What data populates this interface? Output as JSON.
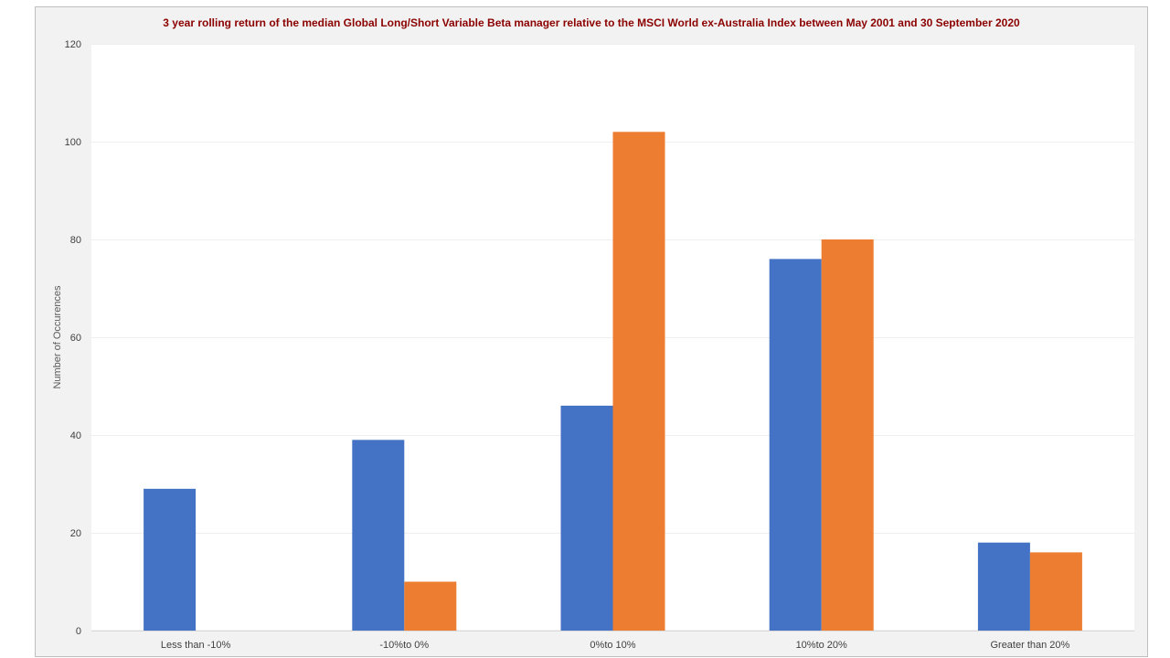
{
  "chart_data": {
    "type": "bar",
    "title": "3 year rolling  return of the median Global  Long/Short Variable Beta manager relative to the MSCI World ex-Australia Index between May 2001 and 30 September 2020",
    "xlabel": "",
    "ylabel": "Number of Occurences",
    "ylim": [
      0,
      120
    ],
    "yticks": [
      0,
      20,
      40,
      60,
      80,
      100,
      120
    ],
    "categories": [
      "Less than -10%",
      "-10%to 0%",
      "0%to 10%",
      "10%to 20%",
      "Greater than 20%"
    ],
    "series": [
      {
        "values": [
          29,
          39,
          46,
          76,
          18
        ],
        "color": "#4472C4"
      },
      {
        "values": [
          0,
          10,
          102,
          80,
          16
        ],
        "color": "#ED7D31"
      }
    ],
    "grid": true,
    "legend": "none",
    "colors": {
      "title": "#8B0000",
      "axis_text": "#404040",
      "gridline": "#EFEFEF",
      "frame": "#BFBFBF",
      "background": "#F2F2F2",
      "plot": "#FFFFFF"
    }
  }
}
